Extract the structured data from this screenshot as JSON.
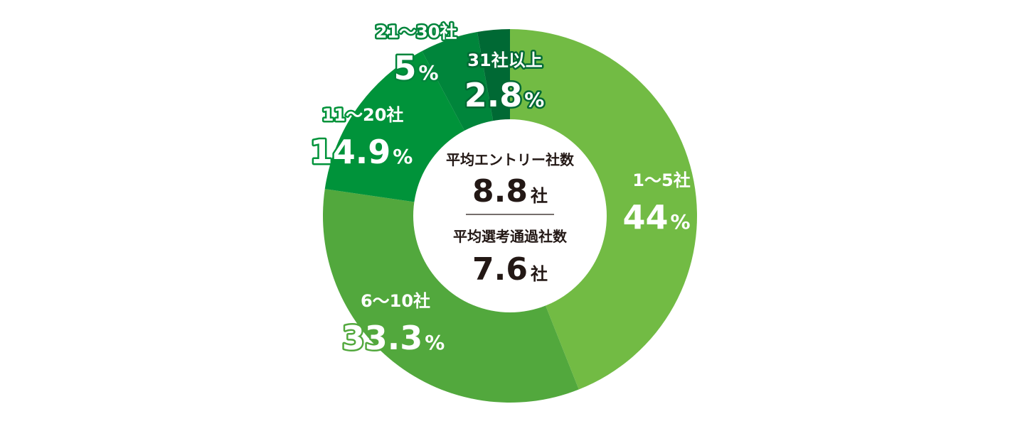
{
  "chart_data": {
    "type": "pie",
    "categories": [
      "1～5社",
      "6～10社",
      "11～20社",
      "21～30社",
      "31社以上"
    ],
    "values": [
      44,
      33.3,
      14.9,
      5,
      2.8
    ],
    "value_labels": [
      "44",
      "33.3",
      "14.9",
      "5",
      "2.8"
    ],
    "value_suffix": "%",
    "colors": [
      "#72bb44",
      "#52a83d",
      "#00933a",
      "#00853b",
      "#006934"
    ],
    "label_outline_colors": [
      null,
      "#52a83d",
      "#00933a",
      "#00853b",
      "#006934"
    ],
    "center": {
      "entry_title": "平均エントリー社数",
      "entry_value": "8.8",
      "entry_unit": "社",
      "selection_title": "平均選考通過社数",
      "selection_value": "7.6",
      "selection_unit": "社"
    }
  }
}
